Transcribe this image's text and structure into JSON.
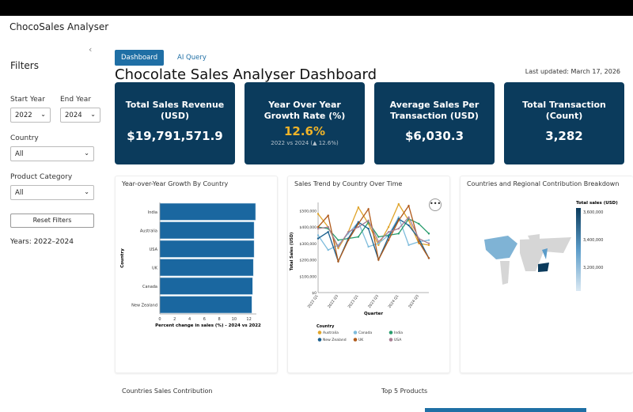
{
  "app": {
    "title": "ChocoSales Analyser",
    "collapse_icon": "‹"
  },
  "sidebar": {
    "heading": "Filters",
    "start_year_label": "Start Year",
    "start_year": "2022",
    "end_year_label": "End Year",
    "end_year": "2024",
    "country_label": "Country",
    "country": "All",
    "category_label": "Product Category",
    "category": "All",
    "reset_label": "Reset Filters",
    "years_text": "Years: 2022–2024"
  },
  "tabs": [
    {
      "label": "Dashboard",
      "active": true
    },
    {
      "label": "AI Query",
      "active": false
    }
  ],
  "header": {
    "title": "Chocolate Sales Analyser Dashboard",
    "updated": "Last updated: March 17, 2026"
  },
  "kpis": [
    {
      "title": "Total Sales Revenue (USD)",
      "value": "$19,791,571.9"
    },
    {
      "title": "Year Over Year Growth Rate (%)",
      "value": "12.6%",
      "sub": "2022 vs 2024 (▲ 12.6%)"
    },
    {
      "title": "Average Sales Per Transaction (USD)",
      "value": "$6,030.3"
    },
    {
      "title": "Total Transaction (Count)",
      "value": "3,282"
    }
  ],
  "colors": {
    "navy": "#0b3b5c",
    "accent": "#1f6fa5",
    "gold": "#f0b429"
  },
  "chart_data": [
    {
      "type": "bar",
      "title": "Year-over-Year Growth By Country",
      "orientation": "horizontal",
      "categories": [
        "India",
        "Australia",
        "USA",
        "UK",
        "Canada",
        "New Zealand"
      ],
      "values": [
        12.9,
        12.7,
        12.7,
        12.6,
        12.5,
        12.4
      ],
      "xlabel": "Percent change in sales (%) - 2024 vs 2022",
      "ylabel": "Country",
      "xlim": [
        0,
        13
      ],
      "xticks": [
        "0",
        "2",
        "4",
        "6",
        "8",
        "10",
        "12"
      ]
    },
    {
      "type": "line",
      "title": "Sales Trend by Country Over Time",
      "xlabel": "Quarter",
      "ylabel": "Total Sales (USD)",
      "ylim": [
        0,
        550000
      ],
      "x": [
        "2022 Q1",
        "2022 Q2",
        "2022 Q3",
        "2022 Q4",
        "2023 Q1",
        "2023 Q2",
        "2023 Q3",
        "2023 Q4",
        "2024 Q1",
        "2024 Q2",
        "2024 Q3",
        "2024 Q4"
      ],
      "xtick_labels": [
        "2022 Q1",
        "2022 Q3",
        "2023 Q1",
        "2023 Q3",
        "2024 Q1",
        "2024 Q3"
      ],
      "yticks": [
        "$0",
        "$100,000",
        "$200,000",
        "$300,000",
        "$400,000",
        "$500,000"
      ],
      "legend_title": "Country",
      "series": [
        {
          "name": "Australia",
          "color": "#e0a42a",
          "values": [
            480000,
            400000,
            270000,
            370000,
            520000,
            420000,
            290000,
            400000,
            540000,
            440000,
            300000,
            290000
          ]
        },
        {
          "name": "Canada",
          "color": "#7fbcdc",
          "values": [
            350000,
            260000,
            290000,
            360000,
            430000,
            280000,
            300000,
            350000,
            460000,
            290000,
            310000,
            320000
          ]
        },
        {
          "name": "India",
          "color": "#2a9d6e",
          "values": [
            400000,
            390000,
            320000,
            330000,
            340000,
            430000,
            340000,
            350000,
            360000,
            450000,
            420000,
            360000
          ]
        },
        {
          "name": "New Zealand",
          "color": "#1a5f8e",
          "values": [
            330000,
            370000,
            190000,
            330000,
            430000,
            390000,
            200000,
            340000,
            450000,
            410000,
            330000,
            210000
          ]
        },
        {
          "name": "UK",
          "color": "#b05a1a",
          "values": [
            400000,
            470000,
            190000,
            320000,
            420000,
            510000,
            200000,
            320000,
            440000,
            530000,
            310000,
            210000
          ]
        },
        {
          "name": "USA",
          "color": "#a87f94",
          "values": [
            390000,
            400000,
            280000,
            370000,
            400000,
            440000,
            310000,
            370000,
            390000,
            460000,
            330000,
            300000
          ]
        }
      ]
    },
    {
      "type": "heatmap",
      "title": "Countries and Regional Contribution Breakdown",
      "legend_title": "Total sales (USD)",
      "legend_ticks": [
        "3,600,000",
        "3,400,000",
        "3,200,000"
      ]
    }
  ],
  "sections": {
    "countries_contribution": "Countries Sales Contribution",
    "top_products": "Top 5 Products"
  }
}
